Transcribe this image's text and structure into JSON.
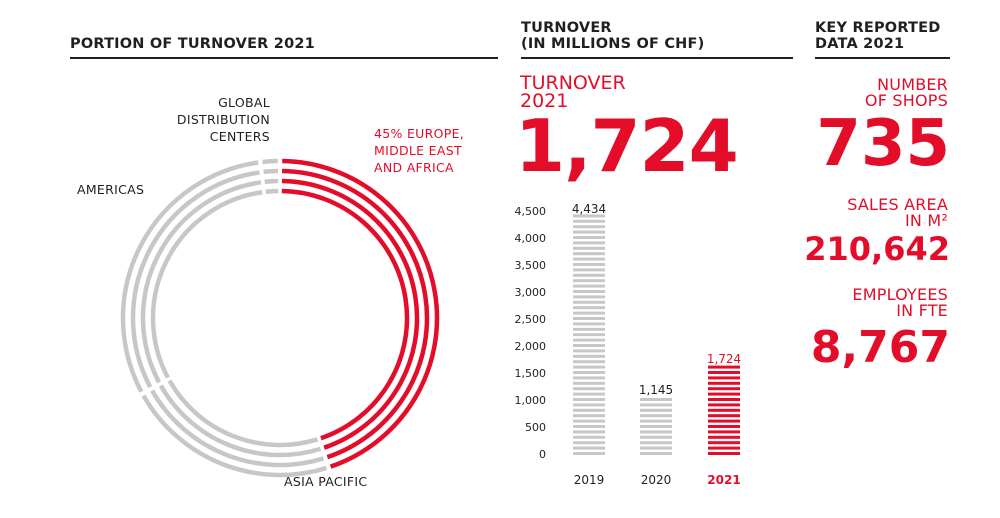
{
  "sections": {
    "portion_title": "PORTION OF TURNOVER 2021",
    "turnover_title_1": "TURNOVER",
    "turnover_title_2": "(IN MILLIONS OF CHF)",
    "key_title_1": "KEY REPORTED",
    "key_title_2": "DATA 2021"
  },
  "headline": {
    "label_1": "TURNOVER",
    "label_2": "2021",
    "value": "1,724"
  },
  "key_data": {
    "shops_label_1": "NUMBER",
    "shops_label_2": "OF SHOPS",
    "shops_value": "735",
    "area_label_1": "SALES AREA",
    "area_label_2": "IN M²",
    "area_value": "210,642",
    "employees_label_1": "EMPLOYEES",
    "employees_label_2": "IN FTE",
    "employees_value": "8,767"
  },
  "colors": {
    "accent": "#e30d2a",
    "muted": "#c9c6c7",
    "text": "#231f20"
  },
  "chart_data": [
    {
      "type": "pie",
      "title": "PORTION OF TURNOVER 2021",
      "slices": [
        {
          "label_lines": [
            "45% EUROPE,",
            "MIDDLE EAST",
            "AND AFRICA"
          ],
          "value": 45,
          "color": "#e30d2a"
        },
        {
          "label_lines": [
            "ASIA PACIFIC"
          ],
          "value": 22,
          "color": "#c9c6c7"
        },
        {
          "label_lines": [
            "AMERICAS"
          ],
          "value": 31,
          "color": "#c9c6c7"
        },
        {
          "label_lines": [
            "GLOBAL",
            "DISTRIBUTION",
            "CENTERS"
          ],
          "value": 2,
          "color": "#c9c6c7"
        }
      ]
    },
    {
      "type": "bar",
      "title": "TURNOVER (IN MILLIONS OF CHF)",
      "categories": [
        "2019",
        "2020",
        "2021"
      ],
      "values": [
        4434,
        1145,
        1724
      ],
      "value_labels": [
        "4,434",
        "1,145",
        "1,724"
      ],
      "highlight": "2021",
      "ylim": [
        0,
        4500
      ],
      "yticks": [
        "0",
        "500",
        "1,000",
        "1,500",
        "2,000",
        "2,500",
        "3,000",
        "3,500",
        "4,000",
        "4,500"
      ],
      "grid": false
    }
  ]
}
